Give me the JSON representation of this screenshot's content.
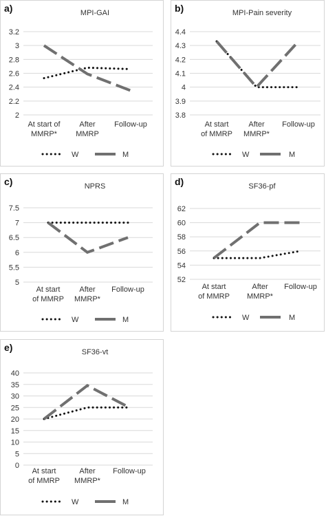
{
  "legend_labels": {
    "w": "W",
    "m": "M"
  },
  "series_styles": {
    "w": {
      "color": "#111111",
      "style": "dotted"
    },
    "m": {
      "color": "#707070",
      "style": "dashed"
    }
  },
  "panels": [
    {
      "letter": "a)"
    },
    {
      "letter": "b)"
    },
    {
      "letter": "c)"
    },
    {
      "letter": "d)"
    },
    {
      "letter": "e)"
    }
  ],
  "chart_data": [
    {
      "type": "line",
      "title": "MPI-GAI",
      "categories": [
        [
          "At start of",
          "MMRP*"
        ],
        [
          "After",
          "MMRP"
        ],
        [
          "Follow-up"
        ]
      ],
      "series": [
        {
          "name": "W",
          "values": [
            2.53,
            2.68,
            2.66
          ]
        },
        {
          "name": "M",
          "values": [
            3.0,
            2.59,
            2.35
          ]
        }
      ],
      "yticks": [
        "3.2",
        "3",
        "2.8",
        "2.6",
        "2.4",
        "2.2",
        "2"
      ],
      "ylim": [
        2,
        3.2
      ],
      "grid": true,
      "legend": "bottom"
    },
    {
      "type": "line",
      "title": "MPI-Pain severity",
      "categories": [
        [
          "At start",
          "of MMRP"
        ],
        [
          "After",
          "MMRP*"
        ],
        [
          "Follow-up"
        ]
      ],
      "series": [
        {
          "name": "W",
          "values": [
            4.33,
            4.0,
            4.0
          ]
        },
        {
          "name": "M",
          "values": [
            4.33,
            4.0,
            4.33
          ]
        }
      ],
      "yticks": [
        "4.4",
        "4.3",
        "4.2",
        "4.1",
        "4",
        "3.9",
        "3.8"
      ],
      "ylim": [
        3.8,
        4.4
      ],
      "grid": true,
      "legend": "bottom"
    },
    {
      "type": "line",
      "title": "NPRS",
      "categories": [
        [
          "At start",
          "of MMRP"
        ],
        [
          "After",
          "MMRP*"
        ],
        [
          "Follow-up"
        ]
      ],
      "series": [
        {
          "name": "W",
          "values": [
            7,
            7,
            7
          ]
        },
        {
          "name": "M",
          "values": [
            7,
            6.0,
            6.5
          ]
        }
      ],
      "yticks": [
        "7.5",
        "7",
        "6.5",
        "6",
        "5.5",
        "5"
      ],
      "ylim": [
        5,
        7.5
      ],
      "grid": true,
      "legend": "bottom"
    },
    {
      "type": "line",
      "title": "SF36-pf",
      "categories": [
        [
          "At start",
          "of MMRP"
        ],
        [
          "After",
          "MMRP*"
        ],
        [
          "Follow-up"
        ]
      ],
      "series": [
        {
          "name": "W",
          "values": [
            55,
            55,
            56
          ]
        },
        {
          "name": "M",
          "values": [
            55,
            60,
            60
          ]
        }
      ],
      "yticks": [
        "62",
        "60",
        "58",
        "56",
        "54",
        "52"
      ],
      "ylim": [
        52,
        62
      ],
      "grid": true,
      "legend": "bottom"
    },
    {
      "type": "line",
      "title": "SF36-vt",
      "categories": [
        [
          "At start",
          "of MMRP"
        ],
        [
          "After",
          "MMRP*"
        ],
        [
          "Follow-up"
        ]
      ],
      "series": [
        {
          "name": "W",
          "values": [
            20,
            25,
            25
          ]
        },
        {
          "name": "M",
          "values": [
            20,
            34.5,
            25
          ]
        }
      ],
      "yticks": [
        "40",
        "35",
        "30",
        "25",
        "20",
        "15",
        "10",
        "5",
        "0"
      ],
      "ylim": [
        0,
        40
      ],
      "grid": true,
      "legend": "bottom"
    }
  ]
}
